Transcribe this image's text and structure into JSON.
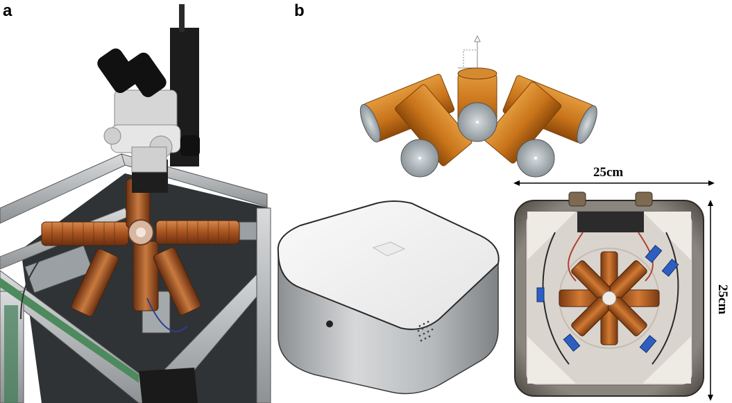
{
  "panels": {
    "a": {
      "label": "a"
    },
    "b": {
      "label": "b"
    }
  },
  "dimensions": {
    "width_label": "25cm",
    "height_label": "25cm"
  },
  "colors": {
    "coil_orange": "#c9741a",
    "copper": "#b8612a",
    "aluminum": "#b9bcbf",
    "box_white": "#f4f4f4"
  }
}
